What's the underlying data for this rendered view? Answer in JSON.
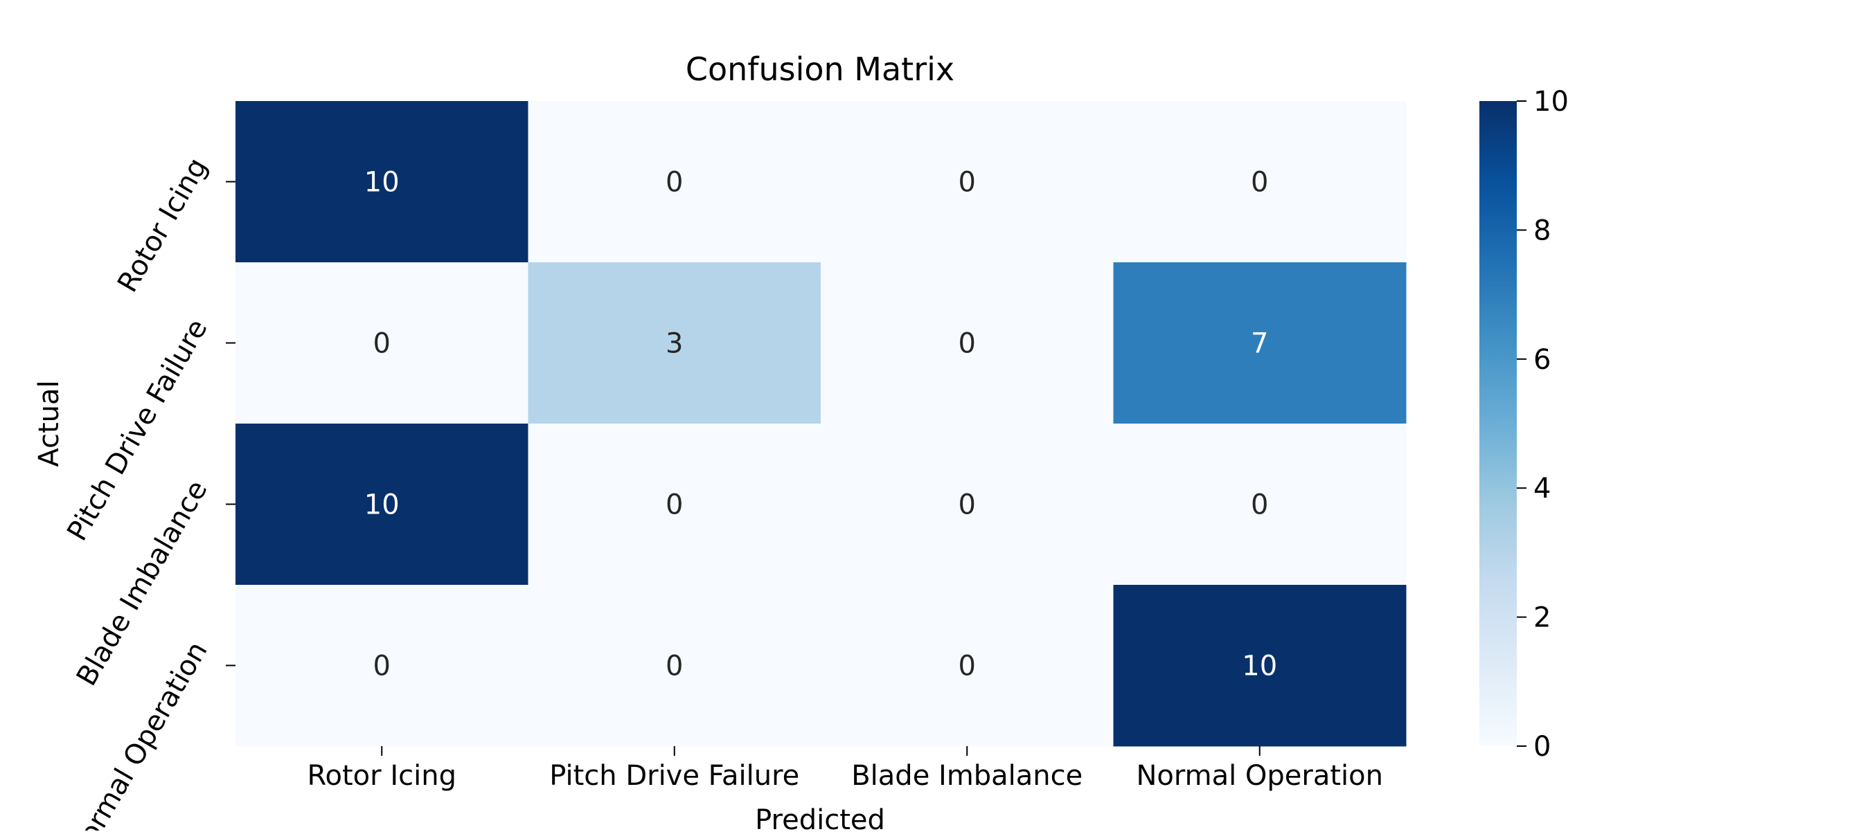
{
  "chart_data": {
    "type": "heatmap",
    "title": "Confusion Matrix",
    "xlabel": "Predicted",
    "ylabel": "Actual",
    "x_categories": [
      "Rotor Icing",
      "Pitch Drive Failure",
      "Blade Imbalance",
      "Normal Operation"
    ],
    "y_categories": [
      "Rotor Icing",
      "Pitch Drive Failure",
      "Blade Imbalance",
      "Normal Operation"
    ],
    "values": [
      [
        10,
        0,
        0,
        0
      ],
      [
        0,
        3,
        0,
        7
      ],
      [
        10,
        0,
        0,
        0
      ],
      [
        0,
        0,
        0,
        10
      ]
    ],
    "colorbar": {
      "range": [
        0,
        10
      ],
      "ticks": [
        "0",
        "2",
        "4",
        "6",
        "8",
        "10"
      ],
      "colormap": "Blues"
    },
    "colors": {
      "min": "#f7fbff",
      "max": "#08306b",
      "text_dark": "#262626",
      "text_light": "#ffffff"
    }
  }
}
